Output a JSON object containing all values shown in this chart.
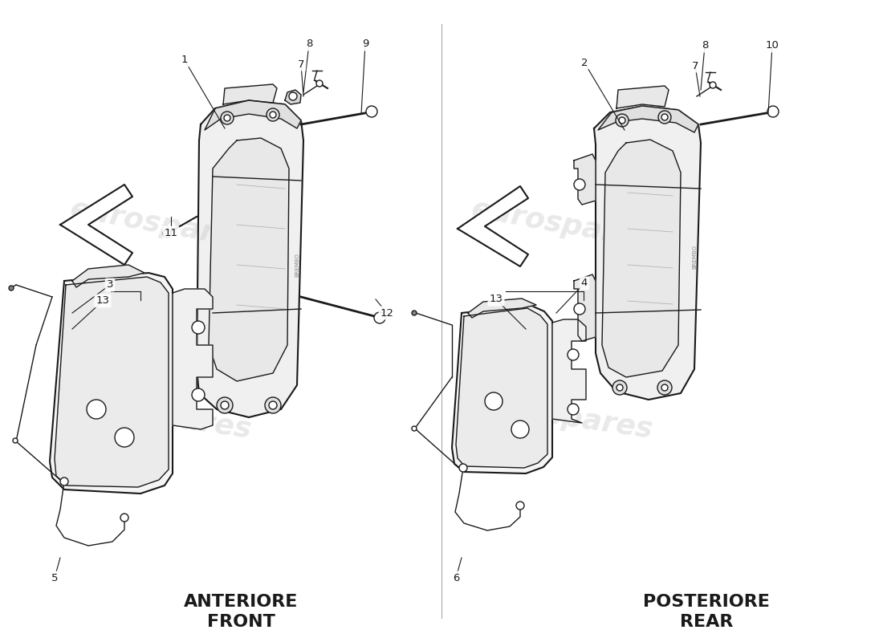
{
  "bg_color": "#ffffff",
  "line_color": "#1a1a1a",
  "watermark_color": "#c8c8c8",
  "watermark_text": "eurospares",
  "figsize": [
    11.0,
    8.0
  ],
  "dpi": 100,
  "front_label_it": "ANTERIORE",
  "front_label_en": "FRONT",
  "rear_label_it": "POSTERIORE",
  "rear_label_en": "REAR",
  "label_fontsize": 16,
  "callout_fontsize": 9.5
}
